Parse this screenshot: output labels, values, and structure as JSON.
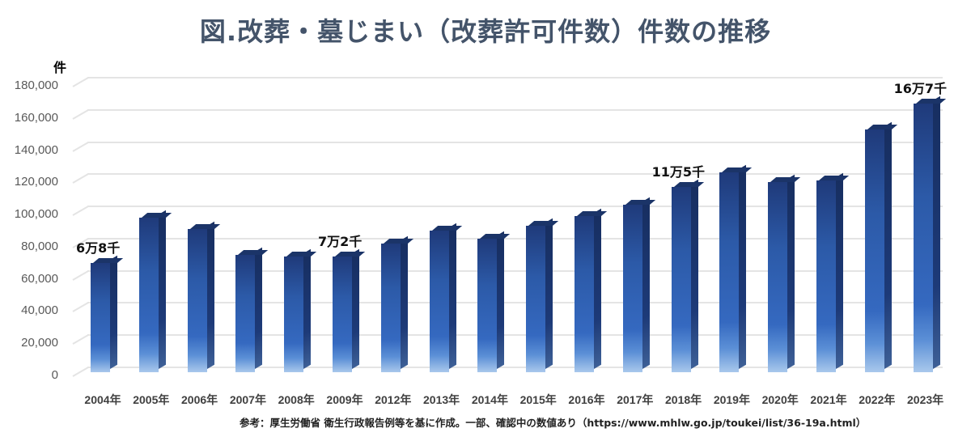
{
  "title": "図.改葬・墓じまい（改葬許可件数）件数の推移",
  "source_note": "参考：厚生労働省 衛生行政報告例等を基に作成。一部、確認中の数値あり（https://www.mhlw.go.jp/toukei/list/36-19a.html）",
  "colors": {
    "title": "#44546a",
    "bar_dark": "#1f3a7a",
    "bar_mid": "#3569c0",
    "bar_light": "#a9c8ec",
    "grid": "#e4e4e4"
  },
  "chart_data": {
    "type": "bar",
    "title": "図.改葬・墓じまい（改葬許可件数）件数の推移",
    "xlabel": "",
    "ylabel": "件",
    "ylim": [
      0,
      180000
    ],
    "yticks": [
      0,
      20000,
      40000,
      60000,
      80000,
      100000,
      120000,
      140000,
      160000,
      180000
    ],
    "ytick_labels": [
      "0",
      "20,000",
      "40,000",
      "60,000",
      "80,000",
      "100,000",
      "120,000",
      "140,000",
      "160,000",
      "180,000"
    ],
    "grid": true,
    "legend": null,
    "style": "3D column, blue gradient",
    "categories": [
      "2004年",
      "2005年",
      "2006年",
      "2007年",
      "2008年",
      "2009年",
      "2012年",
      "2013年",
      "2014年",
      "2015年",
      "2016年",
      "2017年",
      "2018年",
      "2019年",
      "2020年",
      "2021年",
      "2022年",
      "2023年"
    ],
    "values": [
      68000,
      96000,
      89000,
      73000,
      72000,
      72000,
      80000,
      88000,
      83000,
      91000,
      97000,
      104000,
      115000,
      124000,
      118000,
      119000,
      151000,
      167000
    ],
    "annotations": [
      {
        "category": "2004年",
        "text": "6万8千"
      },
      {
        "category": "2009年",
        "text": "7万2千"
      },
      {
        "category": "2018年",
        "text": "11万5千"
      },
      {
        "category": "2023年",
        "text": "16万7千"
      }
    ]
  }
}
